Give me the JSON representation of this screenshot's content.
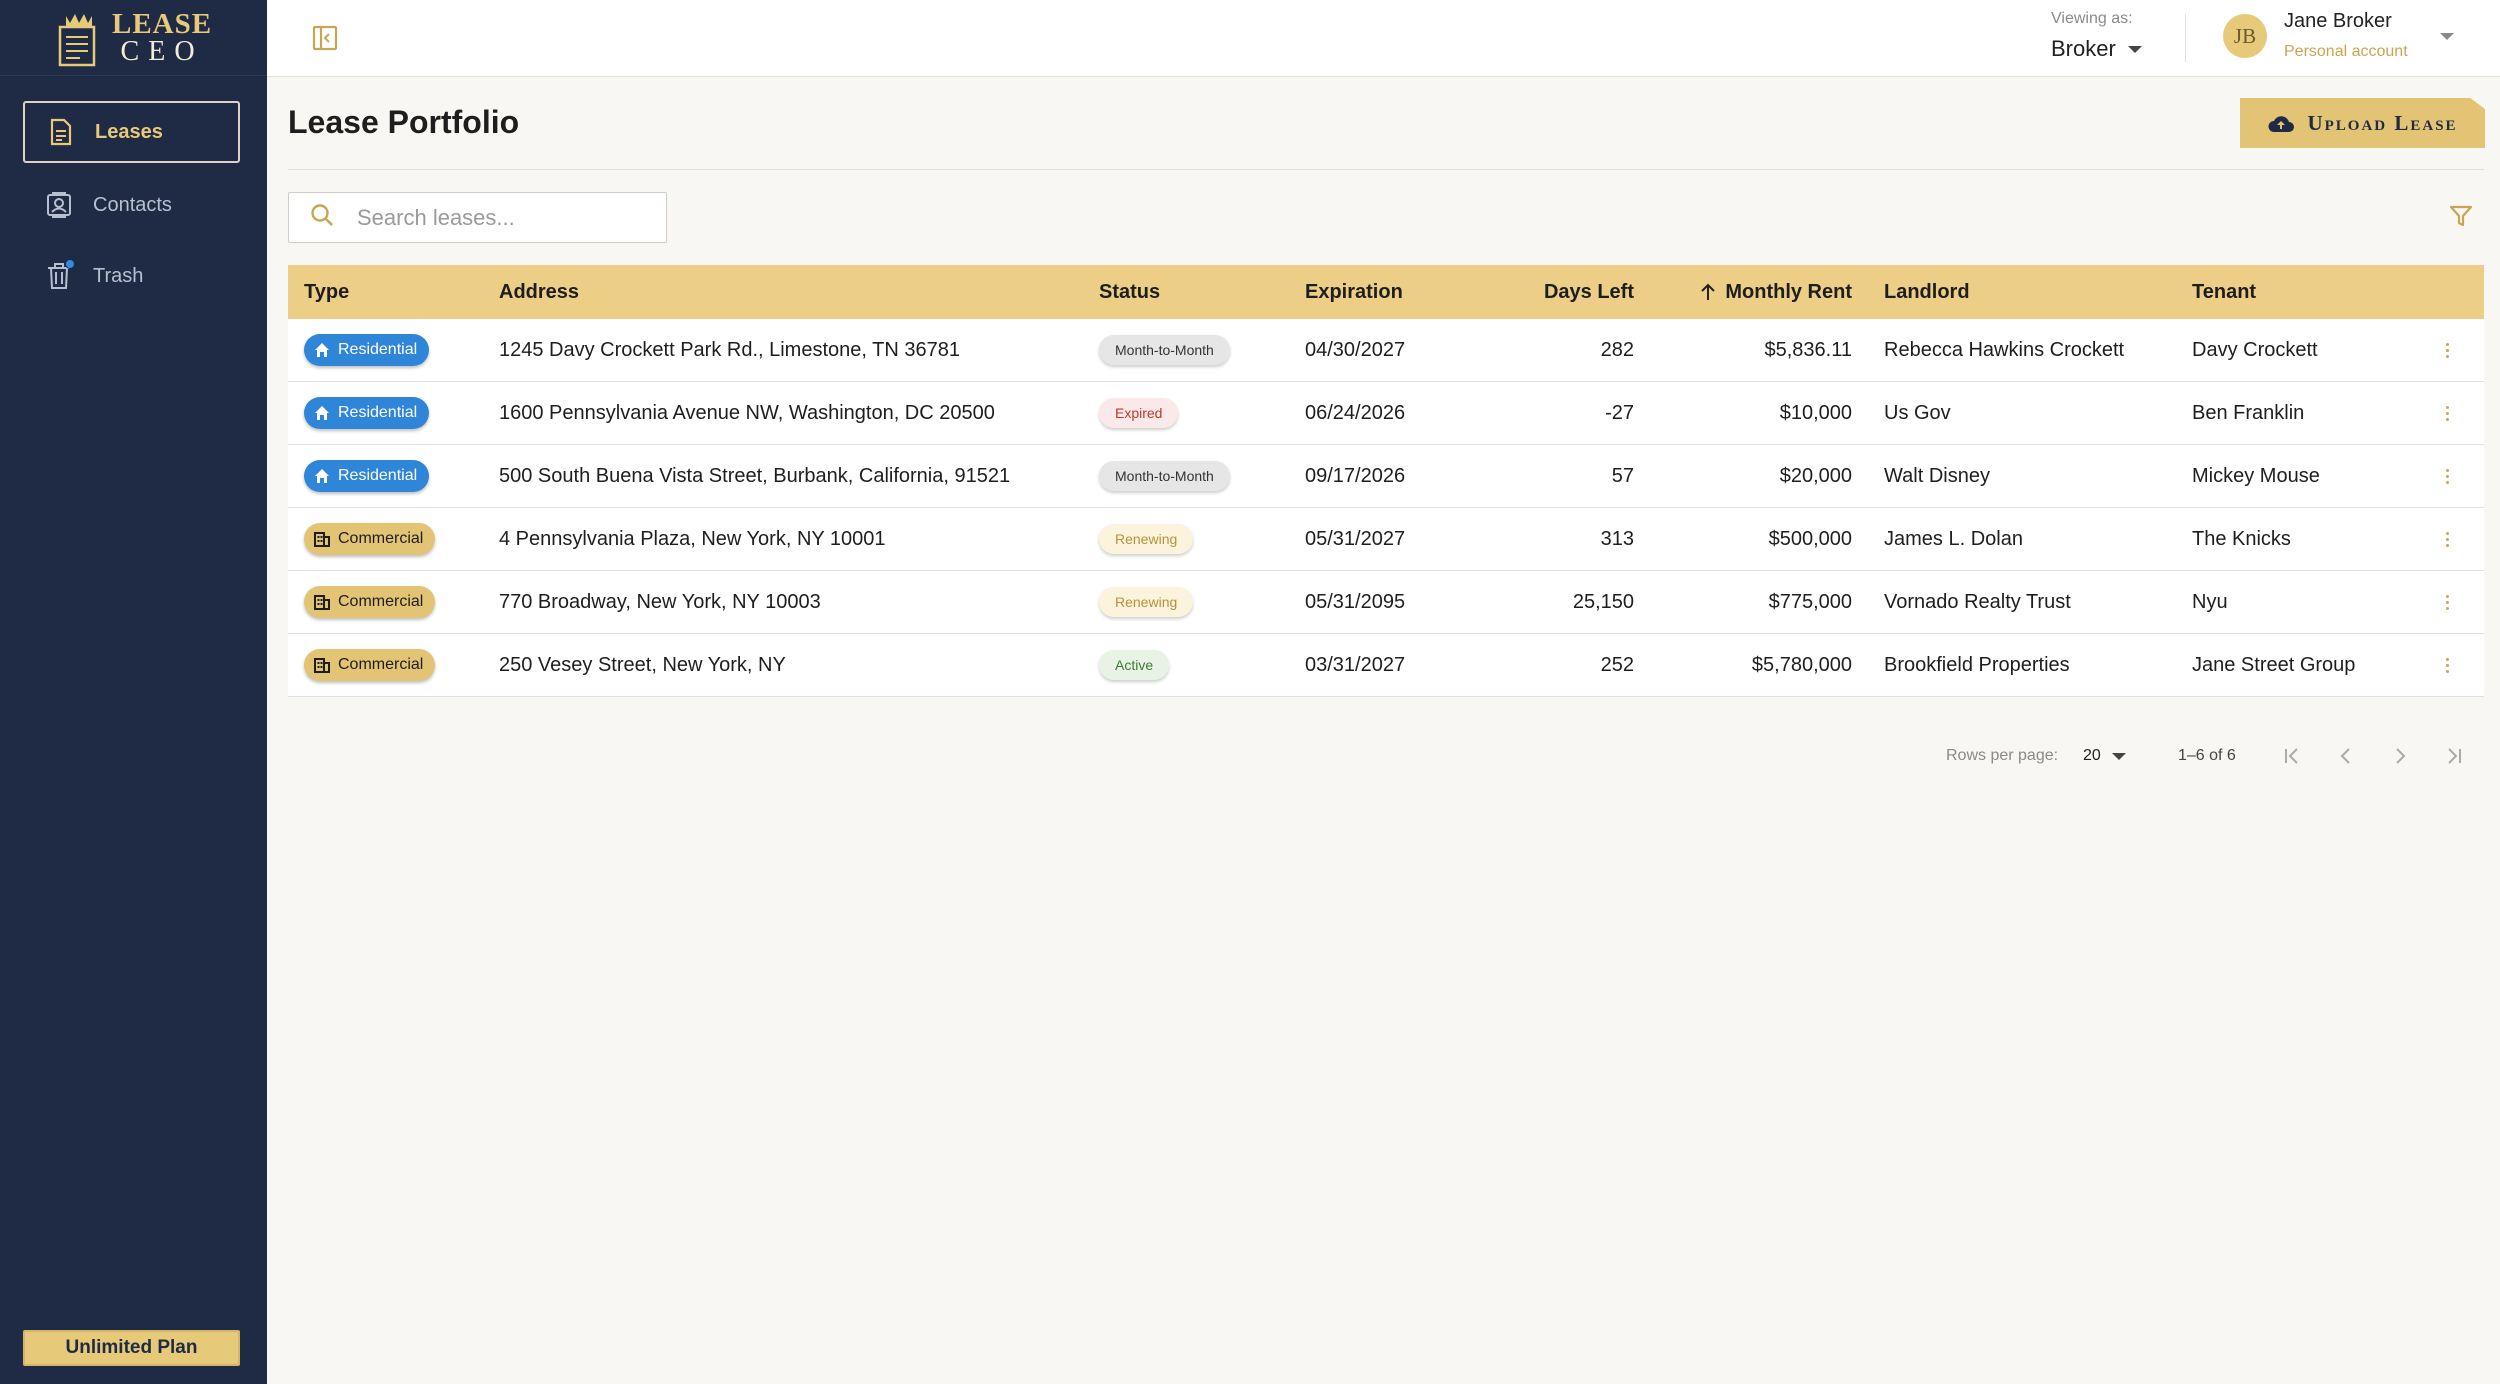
{
  "app": {
    "logo_line1": "LEASE",
    "logo_line2": "CEO",
    "brand_color": "#e7c97a",
    "sidebar_color": "#1f2a44"
  },
  "sidebar": {
    "items": [
      {
        "label": "Leases",
        "icon": "document-icon",
        "active": true
      },
      {
        "label": "Contacts",
        "icon": "contacts-icon",
        "active": false
      },
      {
        "label": "Trash",
        "icon": "trash-icon",
        "active": false
      }
    ],
    "plan_label": "Unlimited Plan"
  },
  "topbar": {
    "viewing_label": "Viewing as:",
    "viewing_value": "Broker",
    "user_initials": "JB",
    "user_name": "Jane Broker",
    "user_sub": "Personal account"
  },
  "main": {
    "title": "Lease Portfolio",
    "upload_label": "Upload Lease",
    "search_placeholder": "Search leases..."
  },
  "table": {
    "headers": {
      "type": "Type",
      "address": "Address",
      "status": "Status",
      "expiration": "Expiration",
      "days_left": "Days Left",
      "monthly_rent": "Monthly Rent",
      "landlord": "Landlord",
      "tenant": "Tenant"
    },
    "sort_column": "monthly_rent",
    "sort_direction": "ascending",
    "rows": [
      {
        "type": "Residential",
        "address": "1245 Davy Crockett Park Rd., Limestone, TN 36781",
        "status": "Month-to-Month",
        "expiration": "04/30/2027",
        "days_left": "282",
        "monthly_rent": "$5,836.11",
        "landlord": "Rebecca Hawkins Crockett",
        "tenant": "Davy Crockett"
      },
      {
        "type": "Residential",
        "address": "1600 Pennsylvania Avenue NW, Washington, DC 20500",
        "status": "Expired",
        "expiration": "06/24/2026",
        "days_left": "-27",
        "monthly_rent": "$10,000",
        "landlord": "Us Gov",
        "tenant": "Ben Franklin"
      },
      {
        "type": "Residential",
        "address": "500 South Buena Vista Street, Burbank, California, 91521",
        "status": "Month-to-Month",
        "expiration": "09/17/2026",
        "days_left": "57",
        "monthly_rent": "$20,000",
        "landlord": "Walt Disney",
        "tenant": "Mickey Mouse"
      },
      {
        "type": "Commercial",
        "address": "4 Pennsylvania Plaza, New York, NY 10001",
        "status": "Renewing",
        "expiration": "05/31/2027",
        "days_left": "313",
        "monthly_rent": "$500,000",
        "landlord": "James L. Dolan",
        "tenant": "The Knicks"
      },
      {
        "type": "Commercial",
        "address": "770 Broadway, New York, NY 10003",
        "status": "Renewing",
        "expiration": "05/31/2095",
        "days_left": "25,150",
        "monthly_rent": "$775,000",
        "landlord": "Vornado Realty Trust",
        "tenant": "Nyu"
      },
      {
        "type": "Commercial",
        "address": "250 Vesey Street, New York, NY",
        "status": "Active",
        "expiration": "03/31/2027",
        "days_left": "252",
        "monthly_rent": "$5,780,000",
        "landlord": "Brookfield Properties",
        "tenant": "Jane Street Group"
      }
    ]
  },
  "pagination": {
    "rows_label": "Rows per page:",
    "rows_value": "20",
    "range": "1–6 of 6"
  },
  "colors": {
    "residential": "#2f86d8",
    "commercial": "#e3c474",
    "header_row": "#ecce86"
  }
}
